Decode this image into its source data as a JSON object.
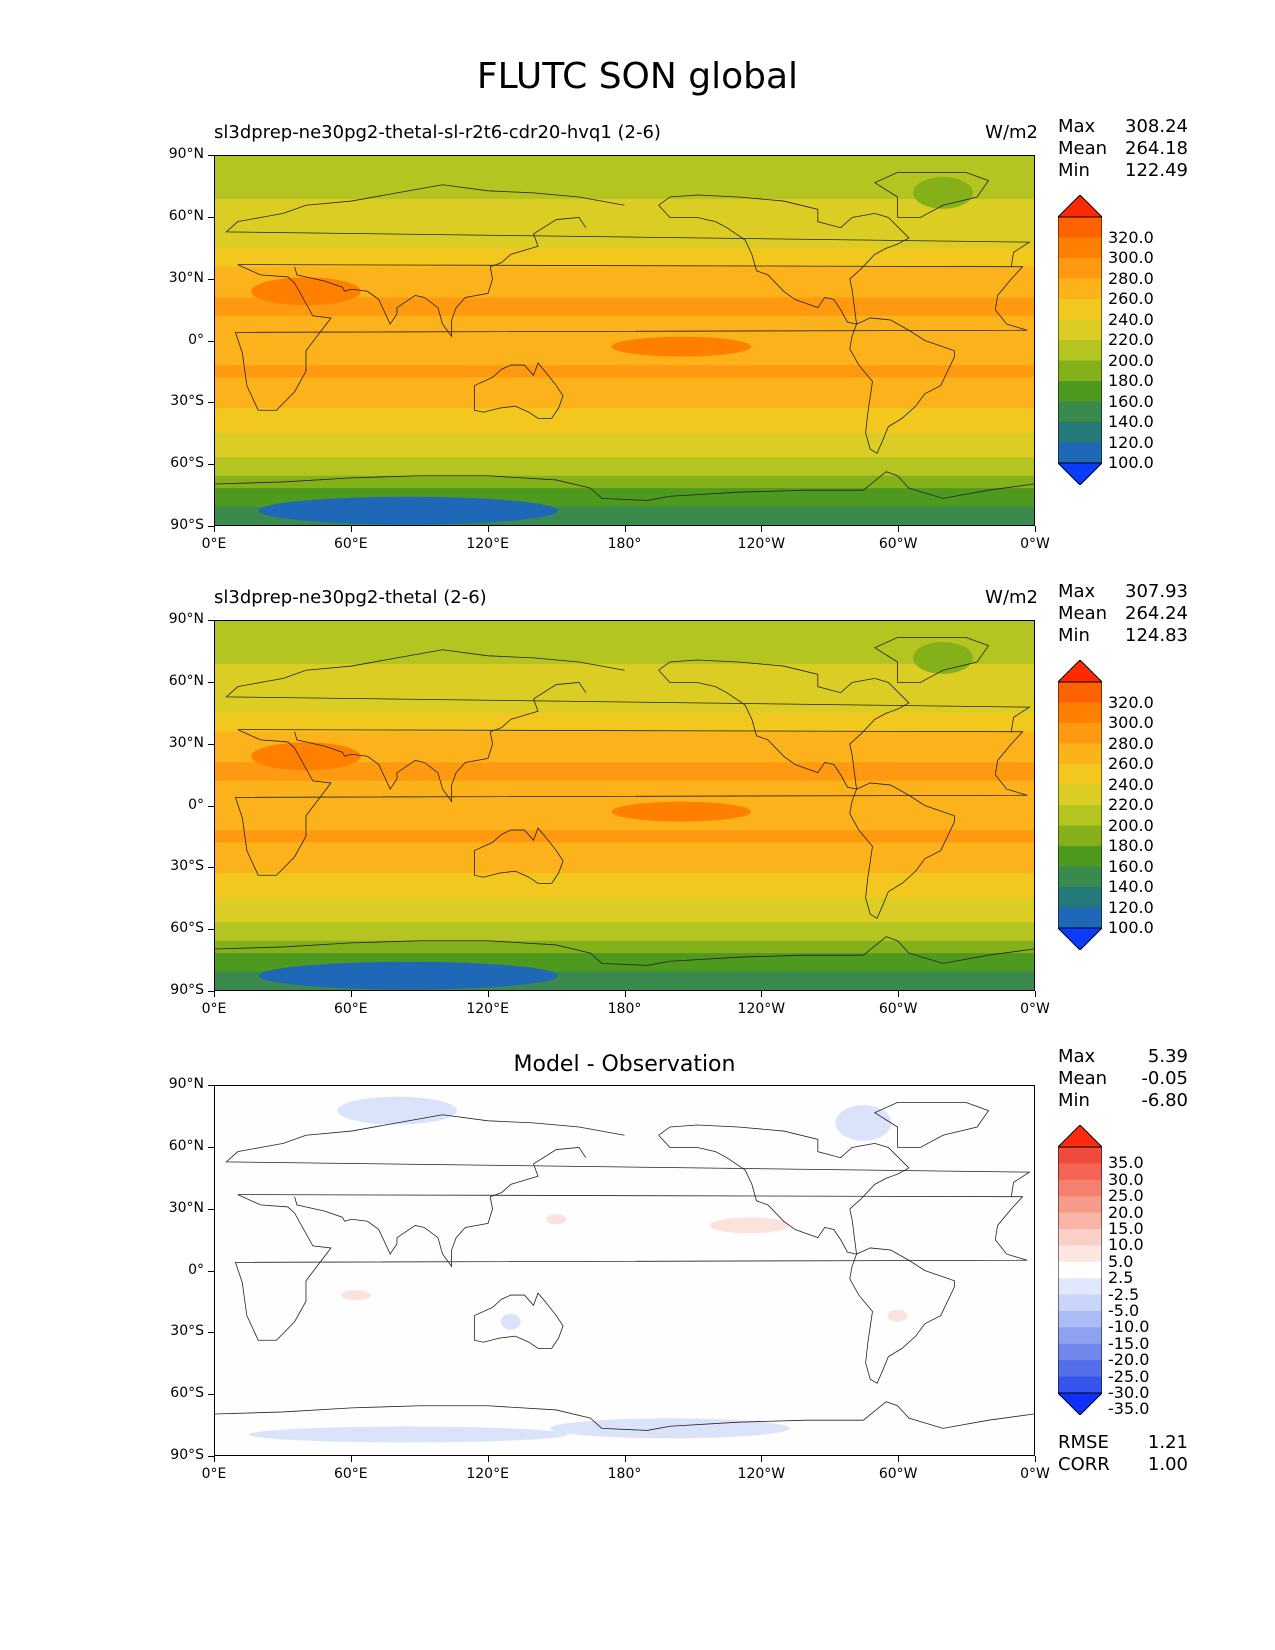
{
  "figure": {
    "title": "FLUTC SON global"
  },
  "axes": {
    "y_ticks": [
      "90°N",
      "60°N",
      "30°N",
      "0°",
      "30°S",
      "60°S",
      "90°S"
    ],
    "x_ticks": [
      "0°E",
      "60°E",
      "120°E",
      "180°",
      "120°W",
      "60°W",
      "0°W"
    ]
  },
  "panels": [
    {
      "left_title": "sl3dprep-ne30pg2-thetal-sl-r2t6-cdr20-hvq1 (2-6)",
      "right_title": "W/m2",
      "center_title": "",
      "stats": [
        {
          "label": "Max",
          "value": "308.24"
        },
        {
          "label": "Mean",
          "value": "264.18"
        },
        {
          "label": "Min",
          "value": "122.49"
        }
      ],
      "extra_stats": [],
      "colorbar": {
        "labels": [
          "320.0",
          "300.0",
          "280.0",
          "260.0",
          "240.0",
          "220.0",
          "200.0",
          "180.0",
          "160.0",
          "140.0",
          "120.0",
          "100.0"
        ],
        "colors": [
          "#ff2a00",
          "#ff6200",
          "#ff8000",
          "#ff9a10",
          "#fcb21a",
          "#f2c81e",
          "#dccd24",
          "#b4c420",
          "#84b01a",
          "#4e9a1e",
          "#3a8a4e",
          "#237a78",
          "#1f68b8",
          "#0a3cff"
        ]
      }
    },
    {
      "left_title": "sl3dprep-ne30pg2-thetal (2-6)",
      "right_title": "W/m2",
      "center_title": "",
      "stats": [
        {
          "label": "Max",
          "value": "307.93"
        },
        {
          "label": "Mean",
          "value": "264.24"
        },
        {
          "label": "Min",
          "value": "124.83"
        }
      ],
      "extra_stats": [],
      "colorbar": {
        "labels": [
          "320.0",
          "300.0",
          "280.0",
          "260.0",
          "240.0",
          "220.0",
          "200.0",
          "180.0",
          "160.0",
          "140.0",
          "120.0",
          "100.0"
        ],
        "colors": [
          "#ff2a00",
          "#ff6200",
          "#ff8000",
          "#ff9a10",
          "#fcb21a",
          "#f2c81e",
          "#dccd24",
          "#b4c420",
          "#84b01a",
          "#4e9a1e",
          "#3a8a4e",
          "#237a78",
          "#1f68b8",
          "#0a3cff"
        ]
      }
    },
    {
      "left_title": "",
      "right_title": "",
      "center_title": "Model - Observation",
      "stats": [
        {
          "label": "Max",
          "value": "5.39"
        },
        {
          "label": "Mean",
          "value": "-0.05"
        },
        {
          "label": "Min",
          "value": "-6.80"
        }
      ],
      "extra_stats": [
        {
          "label": "RMSE",
          "value": "1.21"
        },
        {
          "label": "CORR",
          "value": "1.00"
        }
      ],
      "colorbar": {
        "labels": [
          "35.0",
          "30.0",
          "25.0",
          "20.0",
          "15.0",
          "10.0",
          "5.0",
          "2.5",
          "-2.5",
          "-5.0",
          "-10.0",
          "-15.0",
          "-20.0",
          "-25.0",
          "-30.0",
          "-35.0"
        ],
        "colors": [
          "#ff2a10",
          "#f04a3a",
          "#f46454",
          "#f6806e",
          "#f79a8a",
          "#f8b4a6",
          "#fad0c6",
          "#fce6e0",
          "#ffffff",
          "#e2e8fb",
          "#c8d4f8",
          "#acbcf4",
          "#8ea2f0",
          "#7088ec",
          "#526ee8",
          "#3654ec",
          "#1030ff"
        ]
      }
    }
  ],
  "chart_data": [
    {
      "type": "heatmap",
      "title": "sl3dprep-ne30pg2-thetal-sl-r2t6-cdr20-hvq1 (2-6)",
      "units": "W/m2",
      "x_ticks": [
        "0°E",
        "60°E",
        "120°E",
        "180°",
        "120°W",
        "60°W",
        "0°W"
      ],
      "y_ticks": [
        "90°N",
        "60°N",
        "30°N",
        "0°",
        "30°S",
        "60°S",
        "90°S"
      ],
      "levels": [
        100,
        120,
        140,
        160,
        180,
        200,
        220,
        240,
        260,
        280,
        300,
        320
      ],
      "max": 308.24,
      "mean": 264.18,
      "min": 122.49,
      "zonal_profile_lat": [
        90,
        75,
        60,
        45,
        30,
        15,
        0,
        -15,
        -30,
        -45,
        -60,
        -75,
        -90
      ],
      "zonal_profile_value": [
        205,
        215,
        225,
        240,
        270,
        285,
        265,
        285,
        265,
        240,
        215,
        175,
        140
      ]
    },
    {
      "type": "heatmap",
      "title": "sl3dprep-ne30pg2-thetal (2-6)",
      "units": "W/m2",
      "x_ticks": [
        "0°E",
        "60°E",
        "120°E",
        "180°",
        "120°W",
        "60°W",
        "0°W"
      ],
      "y_ticks": [
        "90°N",
        "60°N",
        "30°N",
        "0°",
        "30°S",
        "60°S",
        "90°S"
      ],
      "levels": [
        100,
        120,
        140,
        160,
        180,
        200,
        220,
        240,
        260,
        280,
        300,
        320
      ],
      "max": 307.93,
      "mean": 264.24,
      "min": 124.83,
      "zonal_profile_lat": [
        90,
        75,
        60,
        45,
        30,
        15,
        0,
        -15,
        -30,
        -45,
        -60,
        -75,
        -90
      ],
      "zonal_profile_value": [
        205,
        215,
        225,
        240,
        270,
        285,
        265,
        285,
        265,
        240,
        215,
        175,
        140
      ]
    },
    {
      "type": "heatmap",
      "title": "Model - Observation",
      "x_ticks": [
        "0°E",
        "60°E",
        "120°E",
        "180°",
        "120°W",
        "60°W",
        "0°W"
      ],
      "y_ticks": [
        "90°N",
        "60°N",
        "30°N",
        "0°",
        "30°S",
        "60°S",
        "90°S"
      ],
      "levels": [
        -35,
        -30,
        -25,
        -20,
        -15,
        -10,
        -5,
        -2.5,
        2.5,
        5,
        10,
        15,
        20,
        25,
        30,
        35
      ],
      "max": 5.39,
      "mean": -0.05,
      "min": -6.8,
      "rmse": 1.21,
      "corr": 1.0
    }
  ]
}
